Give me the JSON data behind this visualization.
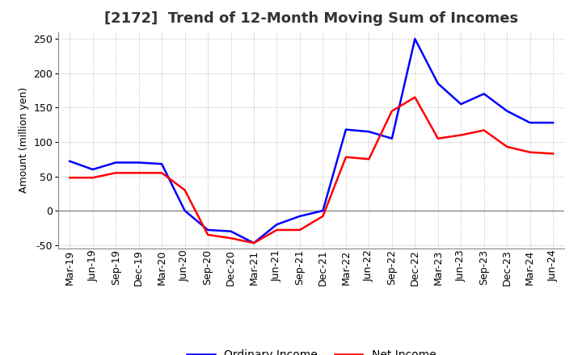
{
  "title": "[2172]  Trend of 12-Month Moving Sum of Incomes",
  "ylabel": "Amount (million yen)",
  "x_labels": [
    "Mar-19",
    "Jun-19",
    "Sep-19",
    "Dec-19",
    "Mar-20",
    "Jun-20",
    "Sep-20",
    "Dec-20",
    "Mar-21",
    "Jun-21",
    "Sep-21",
    "Dec-21",
    "Mar-22",
    "Jun-22",
    "Sep-22",
    "Dec-22",
    "Mar-23",
    "Jun-23",
    "Sep-23",
    "Dec-23",
    "Mar-24",
    "Jun-24"
  ],
  "ordinary_income": [
    72,
    60,
    70,
    70,
    68,
    0,
    -28,
    -30,
    -47,
    -20,
    -8,
    0,
    118,
    115,
    105,
    250,
    185,
    155,
    170,
    145,
    128,
    128
  ],
  "net_income": [
    48,
    48,
    55,
    55,
    55,
    30,
    -35,
    -40,
    -47,
    -28,
    -28,
    -8,
    78,
    75,
    145,
    165,
    105,
    110,
    117,
    93,
    85,
    83
  ],
  "ylim": [
    -55,
    260
  ],
  "yticks": [
    -50,
    0,
    50,
    100,
    150,
    200,
    250
  ],
  "ordinary_color": "#0000FF",
  "net_color": "#FF0000",
  "grid_color": "#AAAAAA",
  "background_color": "#FFFFFF",
  "zero_line_color": "#888888",
  "line_width": 1.8,
  "title_fontsize": 13,
  "title_color": "#333333",
  "legend_fontsize": 10,
  "tick_fontsize": 9,
  "axis_label_fontsize": 9
}
